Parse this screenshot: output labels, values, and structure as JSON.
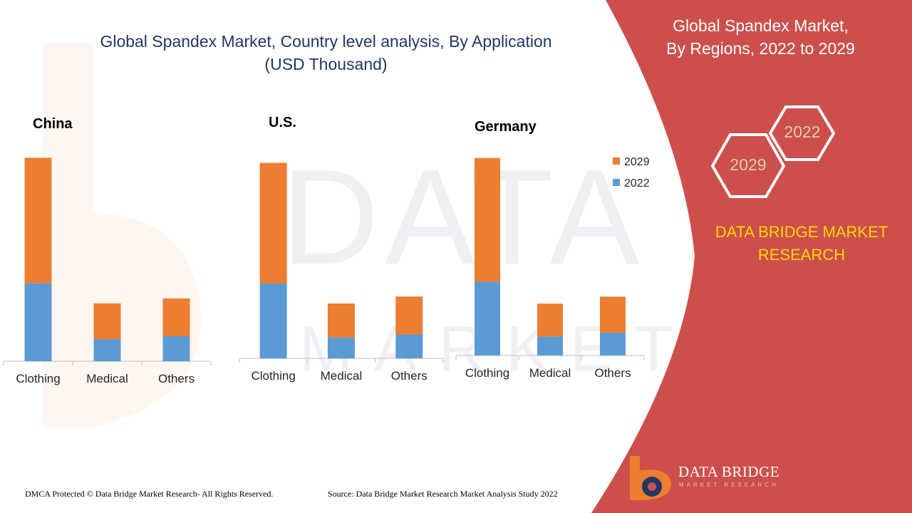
{
  "title_line1": "Global Spandex Market, Country level analysis, By Application",
  "title_line2": "(USD Thousand)",
  "right_panel": {
    "title_line1": "Global Spandex Market,",
    "title_line2": "By Regions, 2022 to 2029",
    "hex_2022": "2022",
    "hex_2029": "2029",
    "brand_line1": "DATA BRIDGE MARKET",
    "brand_line2": "RESEARCH",
    "panel_color": "#cc4f4c"
  },
  "logo": {
    "name": "DATA BRIDGE",
    "tagline": "MARKET RESEARCH"
  },
  "footer": {
    "copyright": "DMCA Protected © Data Bridge Market Research- All Rights Reserved.",
    "source": "Source: Data Bridge Market Research Market Analysis Study 2022"
  },
  "colors": {
    "series_2022": "#5b9bd5",
    "series_2029": "#ed7d31",
    "title": "#1f3864"
  },
  "chart_data": [
    {
      "type": "bar",
      "title": "China",
      "stacked": true,
      "categories": [
        "Clothing",
        "Medical",
        "Others"
      ],
      "series": [
        {
          "name": "2022",
          "values": [
            39,
            11,
            12.5
          ]
        },
        {
          "name": "2029",
          "values": [
            63,
            18,
            19
          ]
        }
      ]
    },
    {
      "type": "bar",
      "title": "U.S.",
      "stacked": true,
      "categories": [
        "Clothing",
        "Medical",
        "Others"
      ],
      "series": [
        {
          "name": "2022",
          "values": [
            37.5,
            10.5,
            12
          ]
        },
        {
          "name": "2029",
          "values": [
            60.5,
            17,
            19
          ]
        }
      ]
    },
    {
      "type": "bar",
      "title": "Germany",
      "stacked": true,
      "categories": [
        "Clothing",
        "Medical",
        "Others"
      ],
      "legend": [
        "2029",
        "2022"
      ],
      "series": [
        {
          "name": "2022",
          "values": [
            37,
            9.5,
            11.5
          ]
        },
        {
          "name": "2029",
          "values": [
            62,
            16.5,
            18
          ]
        }
      ]
    }
  ]
}
